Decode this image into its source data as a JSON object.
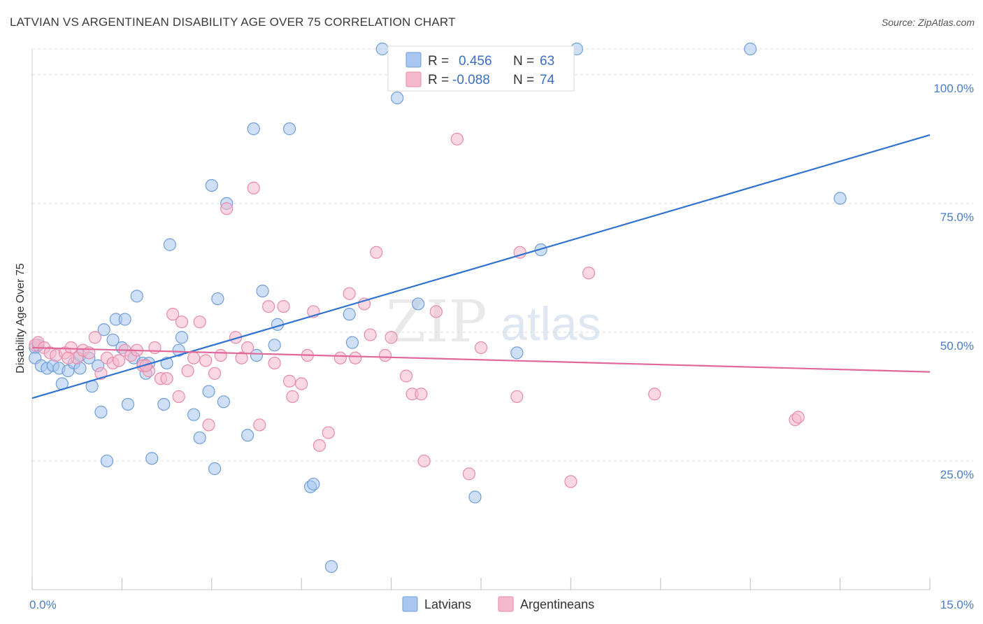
{
  "header": {
    "title": "LATVIAN VS ARGENTINEAN DISABILITY AGE OVER 75 CORRELATION CHART",
    "source": "Source: ZipAtlas.com"
  },
  "watermark": {
    "part1": "ZIP",
    "part2": "atlas"
  },
  "legend": {
    "rows": [
      {
        "r_label": "R =",
        "r_value": "0.456",
        "n_label": "N =",
        "n_value": "63",
        "color": "#a8c6ee"
      },
      {
        "r_label": "R =",
        "r_value": "-0.088",
        "n_label": "N =",
        "n_value": "74",
        "color": "#f5b8cc"
      }
    ]
  },
  "colors": {
    "latvians_fill": "#a8c6ee",
    "latvians_stroke": "#6f9edc",
    "latvians_line": "#2f72d0",
    "argentineans_fill": "#f5b8cc",
    "argentineans_stroke": "#e88aa8",
    "argentineans_line": "#e0689a",
    "grid": "#dddddd",
    "axis_text": "#4a7cc9"
  },
  "chart_data": {
    "type": "scatter",
    "title": "LATVIAN VS ARGENTINEAN DISABILITY AGE OVER 75 CORRELATION CHART",
    "xlabel": "",
    "ylabel": "Disability Age Over 75",
    "xlim": [
      0,
      15
    ],
    "ylim": [
      0,
      105
    ],
    "x_tick_labels": [
      "0.0%",
      "15.0%"
    ],
    "y_tick_labels": [
      "25.0%",
      "50.0%",
      "75.0%",
      "100.0%"
    ],
    "y_ticks": [
      25,
      50,
      75,
      100
    ],
    "grid": true,
    "legend_position": "top-center",
    "series": [
      {
        "name": "Latvians",
        "trend": {
          "x": [
            0,
            15
          ],
          "y": [
            37.2,
            88.3
          ]
        },
        "points": [
          [
            0.05,
            47.0
          ],
          [
            0.05,
            45.0
          ],
          [
            0.15,
            43.5
          ],
          [
            0.25,
            43.0
          ],
          [
            0.35,
            43.5
          ],
          [
            0.45,
            43.0
          ],
          [
            0.5,
            40.0
          ],
          [
            0.6,
            42.5
          ],
          [
            0.7,
            44.0
          ],
          [
            0.8,
            43.0
          ],
          [
            0.8,
            45.5
          ],
          [
            0.95,
            45.0
          ],
          [
            1.0,
            39.5
          ],
          [
            1.1,
            43.5
          ],
          [
            1.15,
            34.5
          ],
          [
            1.2,
            50.5
          ],
          [
            1.25,
            25.0
          ],
          [
            1.35,
            48.5
          ],
          [
            1.4,
            52.5
          ],
          [
            1.5,
            47.0
          ],
          [
            1.55,
            52.5
          ],
          [
            1.6,
            36.0
          ],
          [
            1.7,
            45.0
          ],
          [
            1.75,
            57.0
          ],
          [
            1.85,
            44.0
          ],
          [
            1.9,
            42.0
          ],
          [
            1.95,
            44.0
          ],
          [
            2.0,
            25.5
          ],
          [
            2.2,
            36.0
          ],
          [
            2.25,
            44.0
          ],
          [
            2.3,
            67.0
          ],
          [
            2.45,
            46.5
          ],
          [
            2.5,
            49.0
          ],
          [
            2.7,
            34.0
          ],
          [
            2.8,
            29.5
          ],
          [
            2.95,
            38.5
          ],
          [
            3.0,
            78.5
          ],
          [
            3.05,
            23.5
          ],
          [
            3.1,
            56.5
          ],
          [
            3.2,
            36.5
          ],
          [
            3.25,
            75.0
          ],
          [
            3.6,
            30.0
          ],
          [
            3.7,
            89.5
          ],
          [
            3.75,
            45.5
          ],
          [
            3.85,
            58.0
          ],
          [
            4.05,
            47.5
          ],
          [
            4.1,
            51.5
          ],
          [
            4.3,
            89.5
          ],
          [
            4.65,
            20.0
          ],
          [
            4.7,
            20.5
          ],
          [
            5.0,
            4.5
          ],
          [
            5.3,
            53.5
          ],
          [
            5.35,
            48.0
          ],
          [
            5.85,
            105.0
          ],
          [
            6.1,
            95.5
          ],
          [
            6.45,
            55.5
          ],
          [
            7.4,
            18.0
          ],
          [
            8.1,
            46.0
          ],
          [
            8.5,
            66.0
          ],
          [
            9.1,
            105.0
          ],
          [
            12.0,
            105.0
          ],
          [
            13.5,
            76.0
          ],
          [
            0.1,
            47.5
          ]
        ]
      },
      {
        "name": "Argentineans",
        "trend": {
          "x": [
            0,
            15
          ],
          "y": [
            47.0,
            42.3
          ]
        },
        "points": [
          [
            0.05,
            47.5
          ],
          [
            0.1,
            48.0
          ],
          [
            0.2,
            47.0
          ],
          [
            0.3,
            46.0
          ],
          [
            0.4,
            45.5
          ],
          [
            0.55,
            46.0
          ],
          [
            0.65,
            47.0
          ],
          [
            0.75,
            45.0
          ],
          [
            0.85,
            46.5
          ],
          [
            0.95,
            46.0
          ],
          [
            1.05,
            49.0
          ],
          [
            1.15,
            42.0
          ],
          [
            1.25,
            45.0
          ],
          [
            1.35,
            44.0
          ],
          [
            1.45,
            44.5
          ],
          [
            1.55,
            46.5
          ],
          [
            1.65,
            45.5
          ],
          [
            1.75,
            46.5
          ],
          [
            1.85,
            43.5
          ],
          [
            1.95,
            42.5
          ],
          [
            2.05,
            47.0
          ],
          [
            2.15,
            41.0
          ],
          [
            2.25,
            41.0
          ],
          [
            2.35,
            53.5
          ],
          [
            2.45,
            37.5
          ],
          [
            2.5,
            52.0
          ],
          [
            2.6,
            42.5
          ],
          [
            2.7,
            45.0
          ],
          [
            2.8,
            52.0
          ],
          [
            2.9,
            44.5
          ],
          [
            2.95,
            32.0
          ],
          [
            3.05,
            42.0
          ],
          [
            3.15,
            45.5
          ],
          [
            3.25,
            74.0
          ],
          [
            3.4,
            49.0
          ],
          [
            3.5,
            45.0
          ],
          [
            3.6,
            47.0
          ],
          [
            3.7,
            78.0
          ],
          [
            3.8,
            32.0
          ],
          [
            3.95,
            55.0
          ],
          [
            4.05,
            44.0
          ],
          [
            4.2,
            55.0
          ],
          [
            4.3,
            40.5
          ],
          [
            4.35,
            37.5
          ],
          [
            4.5,
            40.0
          ],
          [
            4.6,
            45.5
          ],
          [
            4.7,
            54.0
          ],
          [
            4.8,
            28.0
          ],
          [
            4.95,
            30.5
          ],
          [
            5.15,
            45.0
          ],
          [
            5.3,
            57.5
          ],
          [
            5.4,
            45.0
          ],
          [
            5.55,
            55.5
          ],
          [
            5.65,
            49.5
          ],
          [
            5.75,
            65.5
          ],
          [
            5.9,
            45.5
          ],
          [
            6.0,
            49.0
          ],
          [
            6.25,
            41.5
          ],
          [
            6.35,
            38.0
          ],
          [
            6.5,
            38.0
          ],
          [
            6.55,
            25.0
          ],
          [
            6.75,
            54.0
          ],
          [
            7.1,
            87.5
          ],
          [
            7.3,
            22.5
          ],
          [
            7.5,
            47.0
          ],
          [
            8.1,
            37.5
          ],
          [
            8.15,
            65.5
          ],
          [
            9.0,
            21.0
          ],
          [
            9.3,
            61.5
          ],
          [
            10.4,
            38.0
          ],
          [
            12.75,
            33.0
          ],
          [
            12.8,
            33.5
          ],
          [
            1.9,
            43.5
          ],
          [
            0.6,
            45.0
          ]
        ]
      }
    ]
  },
  "bottom_legend": [
    {
      "label": "Latvians",
      "color": "#a8c6ee"
    },
    {
      "label": "Argentineans",
      "color": "#f5b8cc"
    }
  ]
}
